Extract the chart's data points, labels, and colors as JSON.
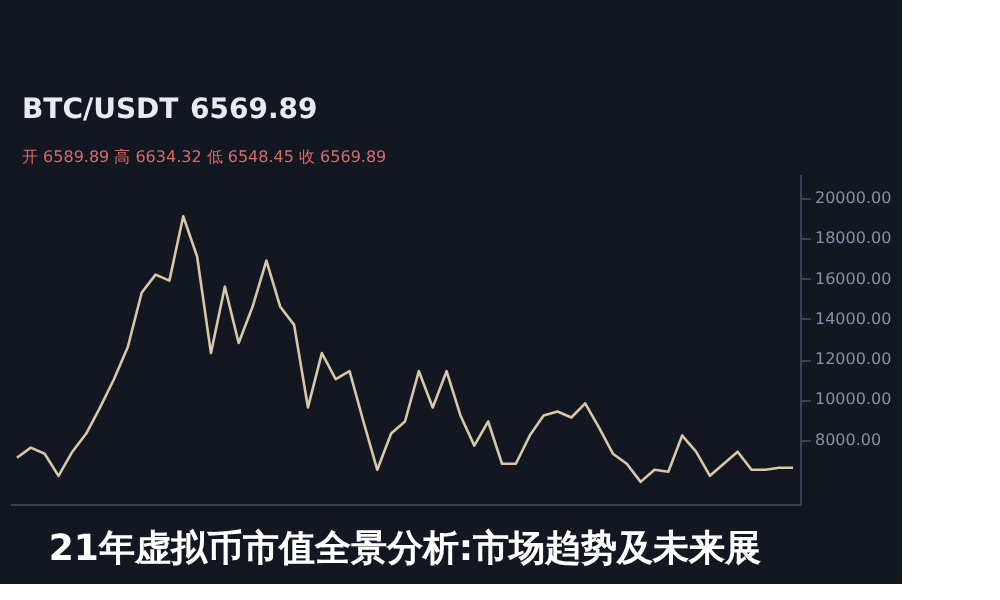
{
  "chart_data": {
    "type": "line",
    "title": "21年虚拟币市值全景分析:市场趋势及未来展",
    "annotations": [
      "BTC/USDT",
      "6569.89",
      "开 6589.89  高 6634.32  低 6548.45  收 6569.89"
    ],
    "categories": [
      null,
      null,
      null,
      null,
      null,
      null,
      null,
      null,
      null,
      null,
      null,
      null,
      null,
      null,
      null,
      null,
      null,
      null,
      null,
      null,
      null,
      null,
      null,
      null,
      null,
      null,
      null,
      null,
      null,
      null,
      null,
      null,
      null,
      null,
      null,
      null,
      null,
      null,
      null,
      null,
      null,
      null,
      null,
      null,
      null,
      null,
      null,
      null,
      null,
      null,
      null,
      null,
      null,
      null,
      null,
      null,
      null
    ],
    "series": [
      {
        "color": "#d8c8a8",
        "values": [
          7100,
          7600,
          7300,
          6200,
          7400,
          8300,
          9600,
          11000,
          12600,
          15300,
          16200,
          15900,
          19100,
          17100,
          12300,
          15600,
          12800,
          14600,
          16900,
          14600,
          13700,
          9600,
          12300,
          11000,
          11400,
          8900,
          6500,
          8300,
          8900,
          11400,
          9600,
          11400,
          9200,
          7700,
          8900,
          6800,
          6800,
          8200,
          9200,
          9400,
          9100,
          9800,
          8600,
          7300,
          6800,
          5900,
          6500,
          6400,
          8200,
          7400,
          6200,
          6800,
          7400,
          6500,
          6500,
          6600,
          6600
        ]
      }
    ],
    "ylim": [
      4800,
      21200
    ],
    "yticks": [
      {
        "value": 8000,
        "label": "8000.00"
      },
      {
        "value": 10000,
        "label": "10000.00"
      },
      {
        "value": 12000,
        "label": "12000.00"
      },
      {
        "value": 14000,
        "label": "14000.00"
      },
      {
        "value": 16000,
        "label": "16000.00"
      },
      {
        "value": 18000,
        "label": "18000.00"
      },
      {
        "value": 20000,
        "label": "20000.00"
      }
    ],
    "grid": false
  }
}
